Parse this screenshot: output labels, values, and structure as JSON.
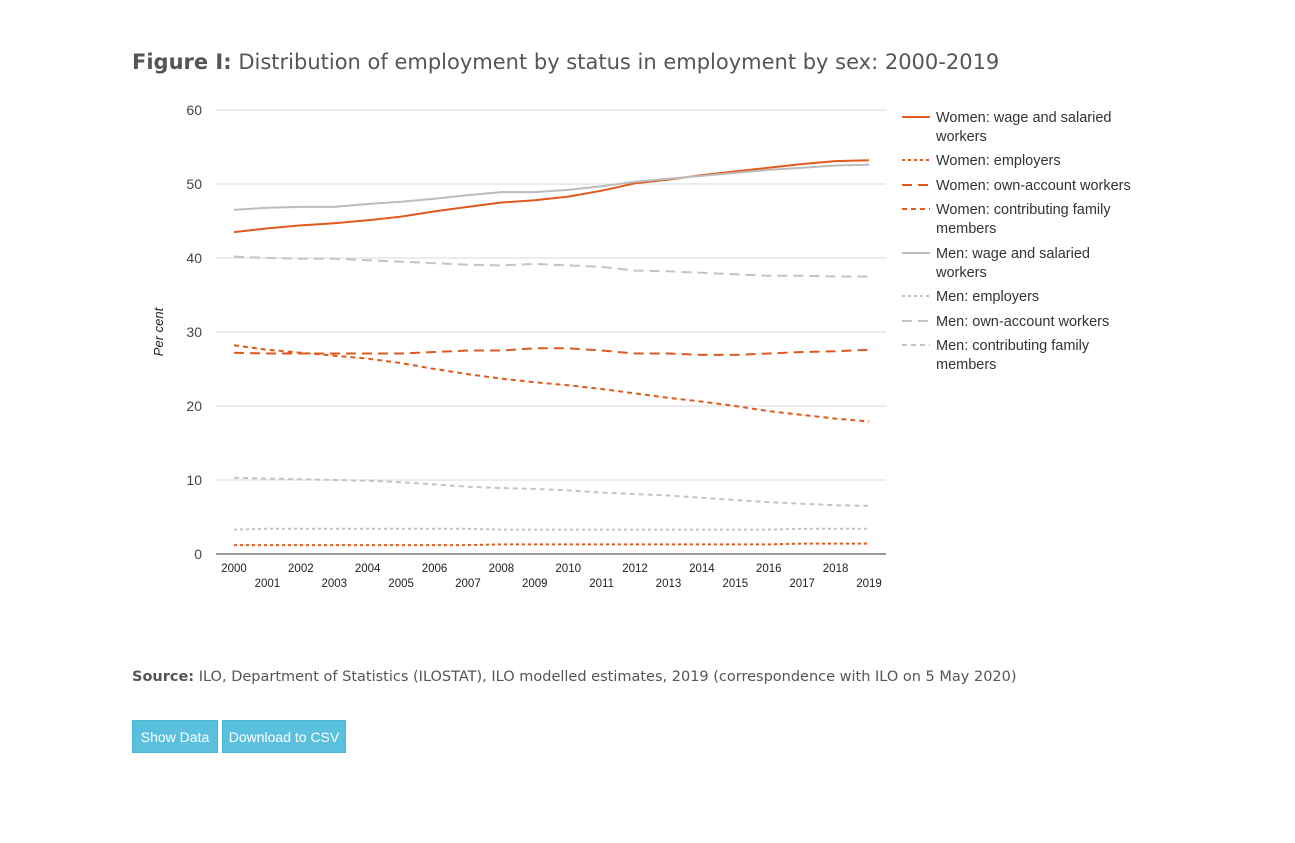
{
  "figure": {
    "title_prefix": "Figure I:",
    "title_text": "Distribution of employment by status in employment by sex: 2000-2019"
  },
  "source": {
    "prefix": "Source:",
    "text": "ILO, Department of Statistics (ILOSTAT), ILO modelled estimates, 2019 (correspondence with ILO on 5 May 2020)"
  },
  "buttons": {
    "show_data": "Show Data",
    "download_csv": "Download to CSV"
  },
  "chart_data": {
    "type": "line",
    "ylabel": "Per cent",
    "ylim": [
      0,
      60
    ],
    "yticks": [
      0,
      10,
      20,
      30,
      40,
      50,
      60
    ],
    "grid": true,
    "legend_position": "right",
    "x": [
      2000,
      2001,
      2002,
      2003,
      2004,
      2005,
      2006,
      2007,
      2008,
      2009,
      2010,
      2011,
      2012,
      2013,
      2014,
      2015,
      2016,
      2017,
      2018,
      2019
    ],
    "series": [
      {
        "name": "Women: wage and salaried workers",
        "color": "#e15a1d",
        "dash": "solid",
        "values": [
          43.5,
          44.0,
          44.4,
          44.7,
          45.1,
          45.6,
          46.3,
          46.9,
          47.5,
          47.8,
          48.3,
          49.1,
          50.1,
          50.6,
          51.2,
          51.7,
          52.2,
          52.7,
          53.1,
          53.2
        ]
      },
      {
        "name": "Women: employers",
        "color": "#e15a1d",
        "dash": "dotted",
        "values": [
          1.2,
          1.2,
          1.2,
          1.2,
          1.2,
          1.2,
          1.2,
          1.2,
          1.3,
          1.3,
          1.3,
          1.3,
          1.3,
          1.3,
          1.3,
          1.3,
          1.3,
          1.4,
          1.4,
          1.4
        ]
      },
      {
        "name": "Women: own-account workers",
        "color": "#e15a1d",
        "dash": "longdash",
        "values": [
          27.2,
          27.1,
          27.1,
          27.1,
          27.1,
          27.1,
          27.3,
          27.5,
          27.5,
          27.8,
          27.8,
          27.5,
          27.1,
          27.1,
          26.9,
          26.9,
          27.1,
          27.3,
          27.4,
          27.6
        ]
      },
      {
        "name": "Women: contributing family members",
        "color": "#e15a1d",
        "dash": "dashed",
        "values": [
          28.2,
          27.6,
          27.2,
          26.8,
          26.4,
          25.8,
          25.0,
          24.3,
          23.7,
          23.2,
          22.8,
          22.3,
          21.7,
          21.1,
          20.6,
          20.0,
          19.3,
          18.8,
          18.3,
          17.9
        ]
      },
      {
        "name": "Men: wage and salaried workers",
        "color": "#bcbcbc",
        "dash": "solid",
        "values": [
          46.5,
          46.8,
          46.9,
          46.9,
          47.3,
          47.6,
          48.0,
          48.5,
          48.9,
          48.9,
          49.2,
          49.7,
          50.3,
          50.7,
          51.1,
          51.5,
          51.9,
          52.2,
          52.5,
          52.6
        ]
      },
      {
        "name": "Men: employers",
        "color": "#c4c4c4",
        "dash": "dotted",
        "values": [
          3.3,
          3.4,
          3.4,
          3.4,
          3.4,
          3.4,
          3.4,
          3.4,
          3.3,
          3.3,
          3.3,
          3.3,
          3.3,
          3.3,
          3.3,
          3.3,
          3.3,
          3.4,
          3.4,
          3.4
        ]
      },
      {
        "name": "Men: own-account workers",
        "color": "#c4c4c4",
        "dash": "longdash",
        "values": [
          40.2,
          40.0,
          39.9,
          39.9,
          39.7,
          39.5,
          39.3,
          39.1,
          39.0,
          39.2,
          39.0,
          38.8,
          38.3,
          38.2,
          38.0,
          37.8,
          37.6,
          37.6,
          37.5,
          37.5
        ]
      },
      {
        "name": "Men: contributing family members",
        "color": "#c4c4c4",
        "dash": "dashed",
        "values": [
          10.3,
          10.2,
          10.1,
          10.0,
          9.9,
          9.7,
          9.4,
          9.1,
          8.9,
          8.8,
          8.6,
          8.3,
          8.1,
          7.9,
          7.6,
          7.3,
          7.0,
          6.8,
          6.6,
          6.5
        ]
      }
    ]
  }
}
